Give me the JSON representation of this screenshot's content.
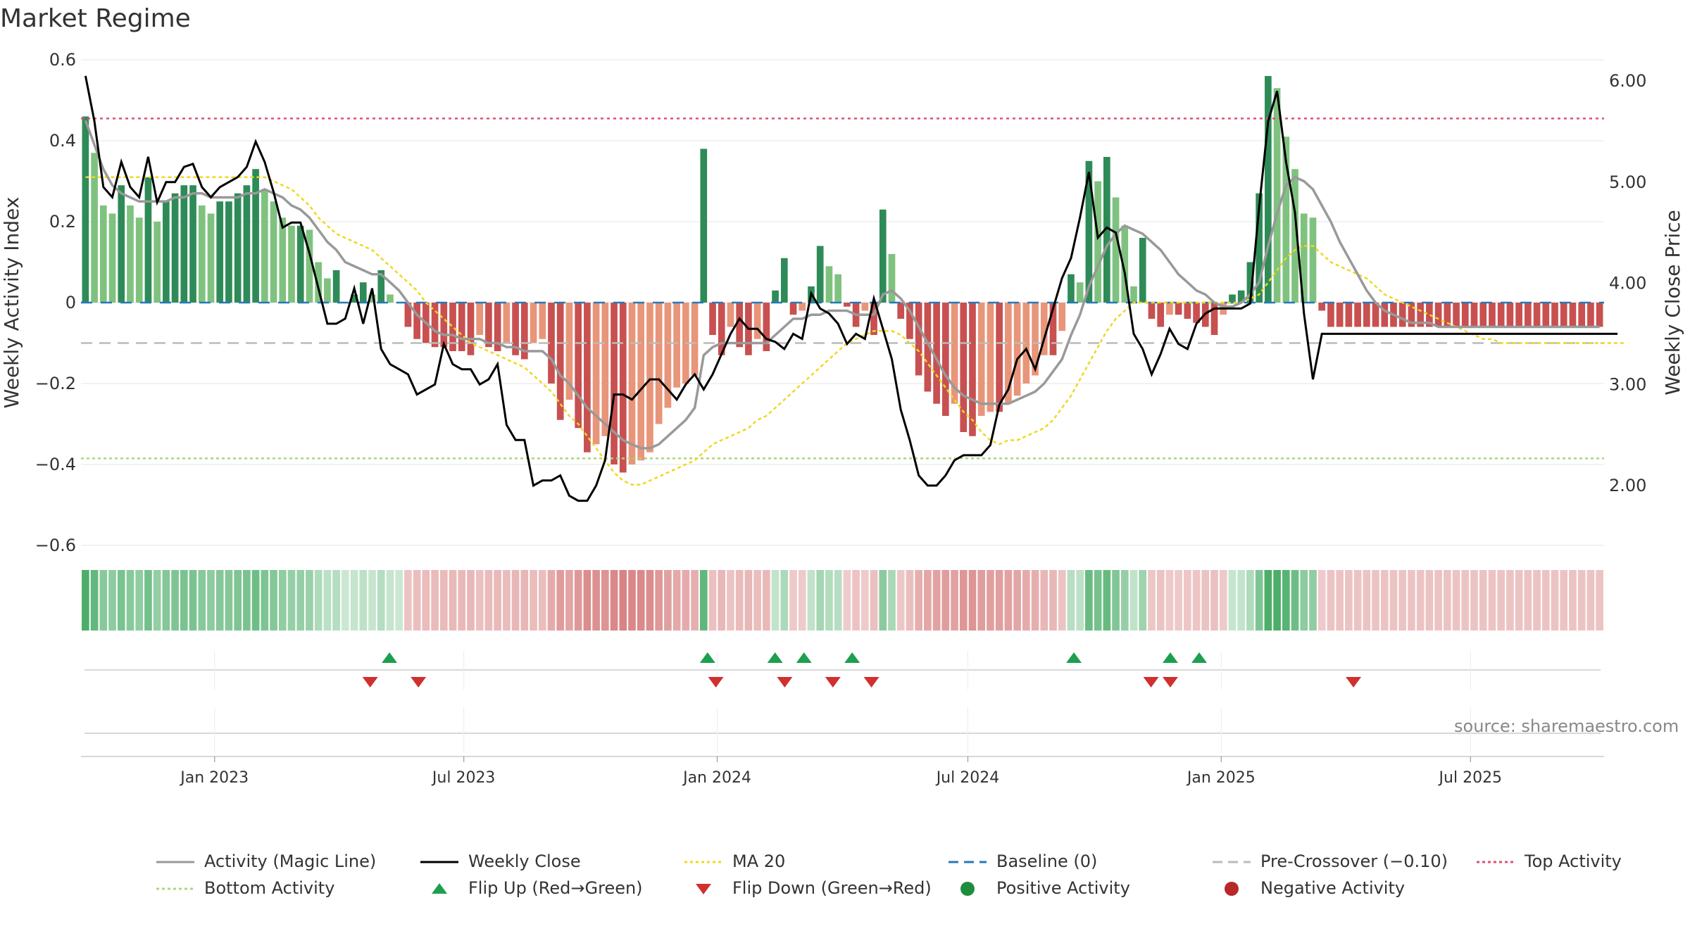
{
  "title": "Market Regime",
  "source": "source: sharemaestro.com",
  "colors": {
    "green_dark": "#2e8b57",
    "green_light": "#7fc27f",
    "red_dark": "#c85050",
    "red_light": "#e8957a",
    "magic_line": "#999999",
    "close": "#000000",
    "ma20": "#f0d820",
    "baseline": "#2878b8",
    "pre_crossover": "#bbbbbb",
    "top_activity": "#e05070",
    "bottom_activity": "#a8d878",
    "flip_up": "#1e9e50",
    "flip_down": "#d03030",
    "positive": "#1e8e3e",
    "negative": "#b82828"
  },
  "legend": [
    {
      "label": "Activity (Magic Line)",
      "kind": "line",
      "color": "#999999",
      "dash": ""
    },
    {
      "label": "Weekly Close",
      "kind": "line",
      "color": "#000000",
      "dash": ""
    },
    {
      "label": "MA 20",
      "kind": "line",
      "color": "#f0d820",
      "dash": "4,4"
    },
    {
      "label": "Baseline (0)",
      "kind": "line",
      "color": "#2878b8",
      "dash": "14,8"
    },
    {
      "label": "Pre-Crossover (−0.10)",
      "kind": "line",
      "color": "#bbbbbb",
      "dash": "14,8"
    },
    {
      "label": "Top Activity",
      "kind": "line",
      "color": "#e05070",
      "dash": "4,4"
    },
    {
      "label": "Bottom Activity",
      "kind": "line",
      "color": "#a8d878",
      "dash": "4,4"
    },
    {
      "label": "Flip Up (Red→Green)",
      "kind": "tri-up",
      "color": "#1e9e50",
      "dash": ""
    },
    {
      "label": "Flip Down (Green→Red)",
      "kind": "tri-down",
      "color": "#d03030",
      "dash": ""
    },
    {
      "label": "Positive Activity",
      "kind": "dot",
      "color": "#1e8e3e",
      "dash": ""
    },
    {
      "label": "Negative Activity",
      "kind": "dot",
      "color": "#b82828",
      "dash": ""
    }
  ],
  "chart_data": {
    "type": "bar",
    "x_start": "2022-09-26",
    "x_end": "2025-10-06",
    "xticks": [
      {
        "date": "2023-01-01",
        "label": "Jan 2023"
      },
      {
        "date": "2023-07-01",
        "label": "Jul 2023"
      },
      {
        "date": "2024-01-01",
        "label": "Jan 2024"
      },
      {
        "date": "2024-07-01",
        "label": "Jul 2024"
      },
      {
        "date": "2025-01-01",
        "label": "Jan 2025"
      },
      {
        "date": "2025-07-01",
        "label": "Jul 2025"
      }
    ],
    "ylabel": "Weekly Activity Index",
    "y2label": "Weekly Close Price",
    "ylim": [
      -0.6,
      0.6
    ],
    "yticks": [
      {
        "v": 0.6,
        "label": "0.6"
      },
      {
        "v": 0.4,
        "label": "0.4"
      },
      {
        "v": 0.2,
        "label": "0.2"
      },
      {
        "v": 0,
        "label": "0"
      },
      {
        "v": -0.2,
        "label": "−0.2"
      },
      {
        "v": -0.4,
        "label": "−0.4"
      },
      {
        "v": -0.6,
        "label": "−0.6"
      }
    ],
    "y2lim": [
      1.4,
      6.2
    ],
    "y2ticks": [
      {
        "v": 6.0,
        "label": "6.00"
      },
      {
        "v": 5.0,
        "label": "5.00"
      },
      {
        "v": 4.0,
        "label": "4.00"
      },
      {
        "v": 3.0,
        "label": "3.00"
      },
      {
        "v": 2.0,
        "label": "2.00"
      }
    ],
    "top_activity": 0.455,
    "bottom_activity": -0.385,
    "pre_crossover": -0.1,
    "baseline": 0,
    "activity_weekly": [
      0.46,
      0.37,
      0.24,
      0.22,
      0.29,
      0.24,
      0.21,
      0.31,
      0.2,
      0.25,
      0.27,
      0.29,
      0.29,
      0.24,
      0.22,
      0.25,
      0.25,
      0.27,
      0.29,
      0.33,
      0.28,
      0.25,
      0.21,
      0.19,
      0.19,
      0.18,
      0.1,
      0.06,
      0.08,
      0.0,
      0.02,
      0.05,
      0.02,
      0.08,
      0.02,
      0.0,
      -0.06,
      -0.09,
      -0.1,
      -0.11,
      -0.11,
      -0.12,
      -0.12,
      -0.13,
      -0.08,
      -0.11,
      -0.12,
      -0.1,
      -0.13,
      -0.14,
      -0.1,
      -0.09,
      -0.2,
      -0.29,
      -0.24,
      -0.31,
      -0.37,
      -0.35,
      -0.33,
      -0.4,
      -0.42,
      -0.4,
      -0.39,
      -0.37,
      -0.3,
      -0.26,
      -0.21,
      -0.2,
      -0.18,
      0.38,
      -0.08,
      -0.13,
      -0.06,
      -0.11,
      -0.13,
      -0.09,
      -0.12,
      0.03,
      0.11,
      -0.03,
      -0.02,
      0.04,
      0.14,
      0.09,
      0.07,
      -0.01,
      -0.06,
      -0.02,
      -0.08,
      0.23,
      0.12,
      -0.04,
      -0.09,
      -0.18,
      -0.22,
      -0.25,
      -0.28,
      -0.25,
      -0.32,
      -0.33,
      -0.28,
      -0.27,
      -0.27,
      -0.25,
      -0.23,
      -0.2,
      -0.18,
      -0.13,
      -0.13,
      -0.07,
      0.07,
      0.05,
      0.35,
      0.3,
      0.36,
      0.26,
      0.19,
      0.04,
      0.16,
      -0.04,
      -0.06,
      -0.03,
      -0.03,
      -0.04,
      -0.05,
      -0.06,
      -0.08,
      -0.03,
      0.02,
      0.03,
      0.1,
      0.27,
      0.56,
      0.53,
      0.41,
      0.33,
      0.22,
      0.21,
      -0.02,
      -0.06,
      -0.06,
      -0.06,
      -0.06,
      -0.06,
      -0.06,
      -0.06,
      -0.06,
      -0.06,
      -0.06,
      -0.06,
      -0.06,
      -0.06,
      -0.06,
      -0.06,
      -0.06,
      -0.06,
      -0.06,
      -0.06,
      -0.06,
      -0.06,
      -0.06,
      -0.06,
      -0.06,
      -0.06,
      -0.06,
      -0.06,
      -0.06,
      -0.06,
      -0.06,
      -0.06
    ],
    "series": [
      {
        "name": "Activity (Magic Line)",
        "values": [
          0.45,
          0.39,
          0.33,
          0.29,
          0.27,
          0.26,
          0.25,
          0.25,
          0.25,
          0.25,
          0.26,
          0.26,
          0.27,
          0.27,
          0.26,
          0.26,
          0.26,
          0.26,
          0.27,
          0.27,
          0.28,
          0.27,
          0.26,
          0.24,
          0.23,
          0.21,
          0.18,
          0.15,
          0.13,
          0.1,
          0.09,
          0.08,
          0.07,
          0.07,
          0.05,
          0.03,
          0.0,
          -0.03,
          -0.05,
          -0.07,
          -0.08,
          -0.08,
          -0.09,
          -0.09,
          -0.09,
          -0.1,
          -0.1,
          -0.11,
          -0.11,
          -0.12,
          -0.12,
          -0.12,
          -0.14,
          -0.18,
          -0.2,
          -0.23,
          -0.26,
          -0.28,
          -0.3,
          -0.32,
          -0.34,
          -0.35,
          -0.36,
          -0.36,
          -0.35,
          -0.33,
          -0.31,
          -0.29,
          -0.26,
          -0.13,
          -0.11,
          -0.1,
          -0.1,
          -0.1,
          -0.1,
          -0.1,
          -0.1,
          -0.08,
          -0.06,
          -0.04,
          -0.04,
          -0.03,
          -0.03,
          -0.02,
          -0.02,
          -0.02,
          -0.03,
          -0.03,
          -0.03,
          0.02,
          0.03,
          0.01,
          -0.02,
          -0.06,
          -0.1,
          -0.14,
          -0.18,
          -0.21,
          -0.23,
          -0.24,
          -0.25,
          -0.25,
          -0.25,
          -0.25,
          -0.24,
          -0.23,
          -0.22,
          -0.2,
          -0.17,
          -0.14,
          -0.08,
          -0.03,
          0.04,
          0.09,
          0.14,
          0.17,
          0.19,
          0.18,
          0.17,
          0.15,
          0.13,
          0.1,
          0.07,
          0.05,
          0.03,
          0.02,
          0.0,
          -0.01,
          -0.01,
          0.0,
          0.02,
          0.05,
          0.14,
          0.22,
          0.29,
          0.31,
          0.3,
          0.28,
          0.24,
          0.2,
          0.15,
          0.11,
          0.07,
          0.03,
          0.0,
          -0.02,
          -0.03,
          -0.04,
          -0.05,
          -0.05,
          -0.05,
          -0.06,
          -0.06,
          -0.06,
          -0.06,
          -0.06,
          -0.06,
          -0.06,
          -0.06,
          -0.06,
          -0.06,
          -0.06,
          -0.06,
          -0.06,
          -0.06,
          -0.06,
          -0.06,
          -0.06,
          -0.06,
          -0.06
        ]
      },
      {
        "name": "Weekly Close",
        "values": [
          6.05,
          5.6,
          4.95,
          4.85,
          5.2,
          4.95,
          4.85,
          5.25,
          4.8,
          5.0,
          5.0,
          5.15,
          5.18,
          4.95,
          4.85,
          4.95,
          5.0,
          5.05,
          5.15,
          5.4,
          5.2,
          4.9,
          4.55,
          4.6,
          4.6,
          4.3,
          3.95,
          3.6,
          3.6,
          3.65,
          3.95,
          3.6,
          3.95,
          3.35,
          3.2,
          3.15,
          3.1,
          2.9,
          2.95,
          3.0,
          3.4,
          3.2,
          3.15,
          3.15,
          3.0,
          3.05,
          3.2,
          2.6,
          2.45,
          2.45,
          2.0,
          2.05,
          2.05,
          2.1,
          1.9,
          1.85,
          1.85,
          2.0,
          2.25,
          2.9,
          2.9,
          2.85,
          2.95,
          3.05,
          3.05,
          2.95,
          2.85,
          3.0,
          3.1,
          2.95,
          3.1,
          3.3,
          3.5,
          3.65,
          3.55,
          3.55,
          3.45,
          3.42,
          3.35,
          3.5,
          3.45,
          3.9,
          3.75,
          3.7,
          3.6,
          3.4,
          3.5,
          3.45,
          3.85,
          3.55,
          3.25,
          2.75,
          2.45,
          2.1,
          2.0,
          2.0,
          2.1,
          2.25,
          2.3,
          2.3,
          2.3,
          2.4,
          2.8,
          2.95,
          3.25,
          3.35,
          3.15,
          3.45,
          3.75,
          4.05,
          4.25,
          4.65,
          5.1,
          4.45,
          4.55,
          4.5,
          4.1,
          3.5,
          3.35,
          3.1,
          3.3,
          3.55,
          3.4,
          3.35,
          3.6,
          3.7,
          3.75,
          3.75,
          3.75,
          3.75,
          3.8,
          4.75,
          5.6,
          5.9,
          5.2,
          4.7,
          3.7,
          3.05,
          3.5,
          3.5,
          3.5,
          3.5,
          3.5,
          3.5,
          3.5,
          3.5,
          3.5,
          3.5,
          3.5,
          3.5,
          3.5,
          3.5,
          3.5,
          3.5,
          3.5,
          3.5,
          3.5,
          3.5,
          3.5,
          3.5,
          3.5,
          3.5,
          3.5,
          3.5,
          3.5,
          3.5,
          3.5,
          3.5,
          3.5,
          3.5,
          3.5,
          3.5
        ]
      },
      {
        "name": "MA 20",
        "values": [
          0.31,
          0.31,
          0.31,
          0.31,
          0.31,
          0.31,
          0.31,
          0.31,
          0.31,
          0.31,
          0.31,
          0.31,
          0.31,
          0.31,
          0.31,
          0.31,
          0.31,
          0.31,
          0.31,
          0.31,
          0.31,
          0.3,
          0.29,
          0.28,
          0.26,
          0.24,
          0.21,
          0.19,
          0.17,
          0.16,
          0.15,
          0.14,
          0.13,
          0.11,
          0.09,
          0.07,
          0.05,
          0.03,
          0.0,
          -0.02,
          -0.04,
          -0.06,
          -0.08,
          -0.1,
          -0.11,
          -0.12,
          -0.13,
          -0.14,
          -0.15,
          -0.16,
          -0.18,
          -0.2,
          -0.22,
          -0.25,
          -0.28,
          -0.3,
          -0.33,
          -0.36,
          -0.39,
          -0.42,
          -0.44,
          -0.45,
          -0.45,
          -0.44,
          -0.43,
          -0.42,
          -0.41,
          -0.4,
          -0.39,
          -0.37,
          -0.35,
          -0.34,
          -0.33,
          -0.32,
          -0.31,
          -0.29,
          -0.28,
          -0.26,
          -0.24,
          -0.22,
          -0.2,
          -0.18,
          -0.16,
          -0.14,
          -0.12,
          -0.1,
          -0.09,
          -0.08,
          -0.07,
          -0.07,
          -0.07,
          -0.08,
          -0.1,
          -0.12,
          -0.15,
          -0.18,
          -0.21,
          -0.24,
          -0.27,
          -0.29,
          -0.32,
          -0.34,
          -0.35,
          -0.34,
          -0.34,
          -0.33,
          -0.32,
          -0.31,
          -0.29,
          -0.26,
          -0.23,
          -0.19,
          -0.15,
          -0.11,
          -0.07,
          -0.04,
          -0.02,
          0.0,
          0.0,
          0.0,
          0.0,
          0.0,
          0.0,
          0.0,
          0.0,
          0.0,
          0.0,
          0.0,
          0.0,
          0.0,
          0.01,
          0.02,
          0.05,
          0.08,
          0.11,
          0.13,
          0.14,
          0.14,
          0.12,
          0.1,
          0.09,
          0.08,
          0.07,
          0.06,
          0.04,
          0.02,
          0.01,
          0.0,
          -0.01,
          -0.02,
          -0.03,
          -0.04,
          -0.05,
          -0.06,
          -0.07,
          -0.08,
          -0.09,
          -0.09,
          -0.1,
          -0.1,
          -0.1,
          -0.1,
          -0.1,
          -0.1,
          -0.1,
          -0.1,
          -0.1,
          -0.1,
          -0.1,
          -0.1,
          -0.1,
          -0.1,
          -0.1
        ]
      }
    ],
    "flips_up": [
      "2023-05-08",
      "2023-12-25",
      "2024-02-12",
      "2024-03-04",
      "2024-04-08",
      "2024-09-16",
      "2024-11-25",
      "2024-12-16"
    ],
    "flips_down": [
      "2023-04-24",
      "2023-05-29",
      "2023-12-31",
      "2024-02-19",
      "2024-03-25",
      "2024-04-22",
      "2024-11-11",
      "2024-11-25",
      "2025-04-07"
    ],
    "grid": true,
    "legend_position": "bottom"
  }
}
